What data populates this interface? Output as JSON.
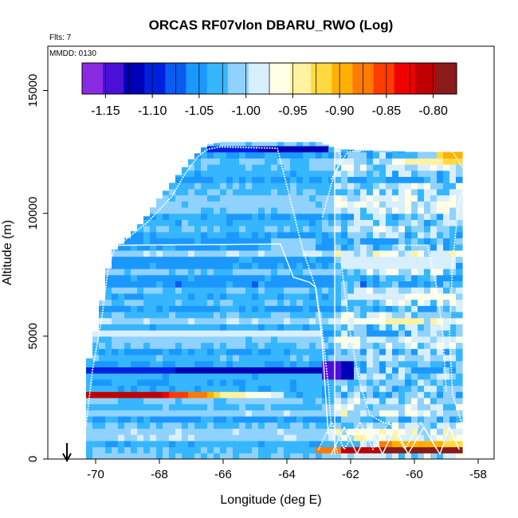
{
  "chart_data": {
    "type": "heatmap",
    "title": "ORCAS RF07vlon DBARU_RWO (Log)",
    "annotations": {
      "flights": "Flts: 7",
      "date": "MMDD: 0130"
    },
    "xlabel": "Longitude (deg E)",
    "ylabel": "Altitude (m)",
    "xlim": [
      -71.5,
      -57.5
    ],
    "ylim": [
      0,
      16800
    ],
    "xticks": [
      -70,
      -68,
      -66,
      -64,
      -62,
      -60,
      -58
    ],
    "xtick_labels": [
      "-70",
      "-68",
      "-66",
      "-64",
      "-62",
      "-60",
      "-58"
    ],
    "yticks": [
      0,
      5000,
      10000,
      15000
    ],
    "ytick_labels": [
      "0",
      "5000",
      "10000",
      "15000"
    ],
    "colorbar": {
      "range": [
        -1.175,
        -0.775
      ],
      "ticks": [
        -1.15,
        -1.1,
        -1.05,
        -1.0,
        -0.95,
        -0.9,
        -0.85,
        -0.8
      ],
      "tick_labels": [
        "-1.15",
        "-1.10",
        "-1.05",
        "-1.00",
        "-0.95",
        "-0.90",
        "-0.85",
        "-0.80"
      ],
      "colors": [
        "#8a2be2",
        "#4b10d8",
        "#0000b8",
        "#0020e0",
        "#0a5cf0",
        "#1a98ff",
        "#36b6ff",
        "#8fd2ff",
        "#d8efff",
        "#ffffe8",
        "#fff2a0",
        "#ffd940",
        "#ffb000",
        "#ff7a00",
        "#ff3c00",
        "#f00000",
        "#c00000",
        "#8b1a1a"
      ]
    },
    "arrow_marker_longitude": -70.9,
    "background_value": -1.03,
    "row_height_m": 250,
    "profile": [
      {
        "x": -70.3,
        "ylo": 0,
        "yhi": 3600
      },
      {
        "x": -70.1,
        "ylo": 0,
        "yhi": 4600
      },
      {
        "x": -69.9,
        "ylo": 0,
        "yhi": 5800
      },
      {
        "x": -69.7,
        "ylo": 0,
        "yhi": 7100
      },
      {
        "x": -69.5,
        "ylo": 0,
        "yhi": 8400
      },
      {
        "x": -69.0,
        "ylo": 0,
        "yhi": 9000
      },
      {
        "x": -68.5,
        "ylo": 0,
        "yhi": 9700
      },
      {
        "x": -68.0,
        "ylo": 0,
        "yhi": 10600
      },
      {
        "x": -67.5,
        "ylo": 0,
        "yhi": 11400
      },
      {
        "x": -67.0,
        "ylo": 0,
        "yhi": 12200
      },
      {
        "x": -66.5,
        "ylo": 0,
        "yhi": 12800
      },
      {
        "x": -66.0,
        "ylo": 0,
        "yhi": 12900
      },
      {
        "x": -63.0,
        "ylo": 0,
        "yhi": 12900
      },
      {
        "x": -62.6,
        "ylo": 0,
        "yhi": 12700
      },
      {
        "x": -62.2,
        "ylo": 0,
        "yhi": 12600
      },
      {
        "x": -60.0,
        "ylo": 0,
        "yhi": 12500
      },
      {
        "x": -58.4,
        "ylo": 0,
        "yhi": 12500
      }
    ],
    "bands": [
      {
        "x0": -70.8,
        "x1": -62.8,
        "y0": 3500,
        "y1": 3850,
        "v0": -1.1,
        "v1": -1.12
      },
      {
        "x0": -62.8,
        "x1": -61.8,
        "y0": 3300,
        "y1": 4000,
        "v0": -1.14,
        "v1": -1.12
      },
      {
        "x0": -70.6,
        "x1": -67.8,
        "y0": 2580,
        "y1": 2850,
        "v0": -0.8,
        "v1": -0.82
      },
      {
        "x0": -67.8,
        "x1": -66.2,
        "y0": 2580,
        "y1": 2850,
        "v0": -0.84,
        "v1": -0.9
      },
      {
        "x0": -66.2,
        "x1": -64.0,
        "y0": 2580,
        "y1": 2850,
        "v0": -0.93,
        "v1": -0.99
      },
      {
        "x0": -66.5,
        "x1": -62.6,
        "y0": 12500,
        "y1": 12800,
        "v0": -1.1,
        "v1": -1.12
      },
      {
        "x0": -62.2,
        "x1": -58.2,
        "y0": 140,
        "y1": 420,
        "v0": -0.8,
        "v1": -0.79
      },
      {
        "x0": -63.0,
        "x1": -62.2,
        "y0": 140,
        "y1": 420,
        "v0": -0.88,
        "v1": -0.86
      },
      {
        "x0": -61.0,
        "x1": -58.4,
        "y0": 420,
        "y1": 800,
        "v0": -0.88,
        "v1": -0.92
      },
      {
        "x0": -60.3,
        "x1": -58.4,
        "y0": 11900,
        "y1": 12300,
        "v0": -0.95,
        "v1": -0.92
      },
      {
        "x0": -59.2,
        "x1": -58.4,
        "y0": 12200,
        "y1": 12500,
        "v0": -0.91,
        "v1": -0.9
      },
      {
        "x0": -61.6,
        "x1": -59.6,
        "y0": 5400,
        "y1": 5750,
        "v0": -0.96,
        "v1": -0.94
      },
      {
        "x0": -70.3,
        "x1": -62.8,
        "y0": 5020,
        "y1": 5200,
        "v0": -0.98,
        "v1": -0.99
      },
      {
        "x0": -62.2,
        "x1": -58.8,
        "y0": 2400,
        "y1": 2600,
        "v0": -0.96,
        "v1": -0.97
      },
      {
        "x0": -62.2,
        "x1": -58.6,
        "y0": 7800,
        "y1": 8200,
        "v0": -0.98,
        "v1": -0.99
      },
      {
        "x0": -62.0,
        "x1": -58.6,
        "y0": 6500,
        "y1": 6800,
        "v0": -0.98,
        "v1": -0.97
      },
      {
        "x0": -64.5,
        "x1": -63.0,
        "y0": 8600,
        "y1": 8900,
        "v0": -1.01,
        "v1": -1.0
      }
    ],
    "flight_tracks": [
      {
        "name": "",
        "style": "dotted",
        "points": [
          [
            -70.3,
            1400
          ],
          [
            -70.1,
            3600
          ],
          [
            -69.8,
            5800
          ],
          [
            -69.6,
            7800
          ],
          [
            -69.4,
            8600
          ],
          [
            -68.4,
            9600
          ],
          [
            -67.6,
            10700
          ],
          [
            -67.2,
            11600
          ],
          [
            -66.8,
            12300
          ],
          [
            -66.5,
            12600
          ],
          [
            -66.1,
            12700
          ],
          [
            -64.3,
            12650
          ],
          [
            -63.9,
            10600
          ],
          [
            -63.5,
            8500
          ],
          [
            -63.1,
            7000
          ],
          [
            -62.9,
            5300
          ],
          [
            -62.7,
            3000
          ],
          [
            -62.6,
            1200
          ],
          [
            -62.4,
            200
          ]
        ]
      },
      {
        "name": "",
        "style": "solid",
        "points": [
          [
            -69.6,
            8700
          ],
          [
            -64.2,
            8750
          ],
          [
            -63.8,
            7400
          ],
          [
            -63.3,
            7200
          ],
          [
            -63.1,
            7000
          ],
          [
            -62.9,
            4900
          ],
          [
            -62.8,
            2900
          ],
          [
            -62.7,
            1000
          ]
        ]
      },
      {
        "name": "",
        "style": "solid",
        "points": [
          [
            -62.5,
            12700
          ],
          [
            -62.5,
            200
          ]
        ]
      },
      {
        "name": "",
        "style": "dotted",
        "points": [
          [
            -62.6,
            11400
          ],
          [
            -62.1,
            12500
          ],
          [
            -61.2,
            12600
          ],
          [
            -59.4,
            12550
          ],
          [
            -58.8,
            12500
          ],
          [
            -58.3,
            11500
          ],
          [
            -58.6,
            10500
          ],
          [
            -58.8,
            8000
          ],
          [
            -58.9,
            5000
          ],
          [
            -58.8,
            2600
          ],
          [
            -58.5,
            1400
          ]
        ]
      },
      {
        "name": "",
        "style": "dotted",
        "points": [
          [
            -62.3,
            8000
          ],
          [
            -62.0,
            5000
          ],
          [
            -61.7,
            3000
          ],
          [
            -61.4,
            1800
          ],
          [
            -61.0,
            1500
          ],
          [
            -60.7,
            1400
          ]
        ]
      },
      {
        "name": "",
        "style": "dotted",
        "points": [
          [
            -60.6,
            8700
          ],
          [
            -59.6,
            8700
          ],
          [
            -59.3,
            7000
          ],
          [
            -59.1,
            5000
          ],
          [
            -59.0,
            2700
          ]
        ]
      },
      {
        "name": "",
        "style": "dotted",
        "points": [
          [
            -62.5,
            12800
          ],
          [
            -62.3,
            12300
          ],
          [
            -62.6,
            11200
          ],
          [
            -62.9,
            9800
          ]
        ]
      },
      {
        "name": "",
        "style": "solid",
        "points": [
          [
            -62.6,
            200
          ],
          [
            -62.2,
            1300
          ],
          [
            -61.8,
            200
          ],
          [
            -61.4,
            1300
          ],
          [
            -61.0,
            200
          ],
          [
            -60.6,
            1300
          ],
          [
            -60.2,
            200
          ],
          [
            -59.7,
            1300
          ],
          [
            -59.2,
            200
          ],
          [
            -58.9,
            1300
          ],
          [
            -58.6,
            400
          ]
        ]
      },
      {
        "name": "",
        "style": "dotted",
        "points": [
          [
            -63.0,
            400
          ],
          [
            -62.6,
            1500
          ],
          [
            -62.2,
            400
          ],
          [
            -61.7,
            1500
          ],
          [
            -61.3,
            400
          ],
          [
            -60.8,
            1500
          ],
          [
            -60.3,
            400
          ],
          [
            -59.8,
            1500
          ],
          [
            -59.3,
            400
          ]
        ]
      }
    ]
  }
}
